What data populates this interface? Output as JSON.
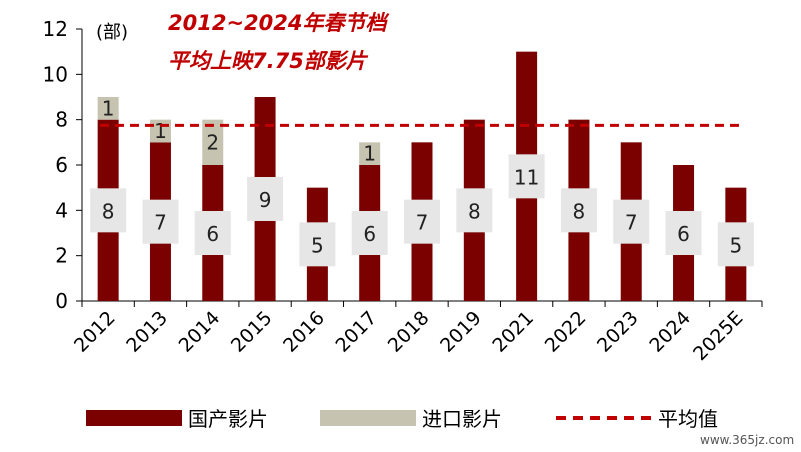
{
  "chart_data": {
    "type": "bar",
    "stacked": true,
    "categories": [
      "2012",
      "2013",
      "2014",
      "2015",
      "2016",
      "2017",
      "2018",
      "2019",
      "2021",
      "2022",
      "2023",
      "2024",
      "2025E"
    ],
    "series": [
      {
        "name": "国产影片",
        "values": [
          8,
          7,
          6,
          9,
          5,
          6,
          7,
          8,
          11,
          8,
          7,
          6,
          5
        ],
        "color": "#7b0000"
      },
      {
        "name": "进口影片",
        "values": [
          1,
          1,
          2,
          0,
          0,
          1,
          0,
          0,
          0,
          0,
          0,
          0,
          0
        ],
        "color": "#c6c4b0"
      }
    ],
    "average": {
      "name": "平均值",
      "value": 7.75,
      "color": "#c00000"
    },
    "title_line1": "2012~2024年春节档",
    "title_line2": "平均上映7.75部影片",
    "unit_label": "(部)",
    "ylim": [
      0,
      12
    ],
    "yticks": [
      0,
      2,
      4,
      6,
      8,
      10,
      12
    ],
    "grid": false,
    "legend_position": "bottom"
  },
  "watermark": "www.365jz.com"
}
